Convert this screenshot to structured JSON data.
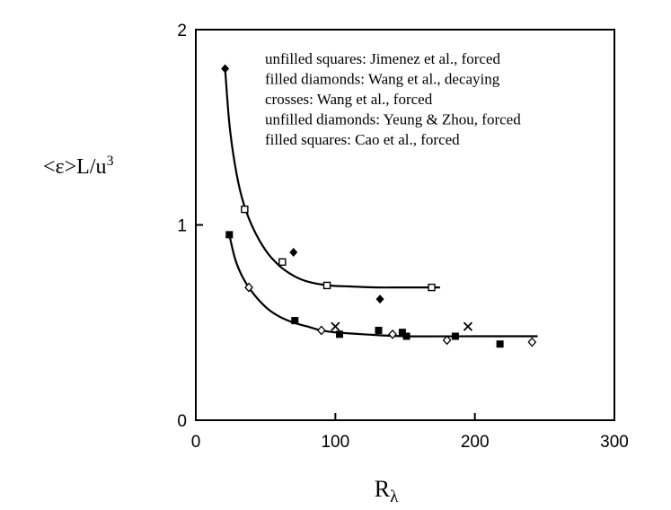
{
  "chart_data": {
    "type": "scatter",
    "xlabel_base": "R",
    "xlabel_sub": "λ",
    "ylabel_base": "<ε>L/u",
    "ylabel_sup": "3",
    "xlim": [
      0,
      300
    ],
    "ylim": [
      0,
      2
    ],
    "x_ticks": [
      0,
      100,
      200,
      300
    ],
    "y_ticks": [
      0,
      1,
      2
    ],
    "grid": false,
    "legend_placement": "top-right inside plot",
    "legend": [
      "unfilled squares: Jimenez et al., forced",
      "filled diamonds: Wang et al., decaying",
      "crosses: Wang et al., forced",
      "unfilled diamonds: Yeung & Zhou, forced",
      "filled squares: Cao et al., forced"
    ],
    "series": [
      {
        "marker": "square-open",
        "points": [
          [
            35,
            1.08
          ],
          [
            62,
            0.81
          ],
          [
            94,
            0.69
          ],
          [
            169,
            0.68
          ]
        ]
      },
      {
        "marker": "diamond-filled",
        "points": [
          [
            21,
            1.8
          ],
          [
            70,
            0.86
          ],
          [
            132,
            0.62
          ]
        ]
      },
      {
        "marker": "cross",
        "points": [
          [
            100,
            0.48
          ],
          [
            195,
            0.48
          ]
        ]
      },
      {
        "marker": "diamond-open",
        "points": [
          [
            38,
            0.68
          ],
          [
            90,
            0.46
          ],
          [
            141,
            0.44
          ],
          [
            180,
            0.41
          ],
          [
            241,
            0.4
          ]
        ]
      },
      {
        "marker": "square-filled",
        "points": [
          [
            24,
            0.95
          ],
          [
            71,
            0.51
          ],
          [
            103,
            0.44
          ],
          [
            131,
            0.46
          ],
          [
            148,
            0.45
          ],
          [
            151,
            0.43
          ],
          [
            186,
            0.43
          ],
          [
            218,
            0.39
          ]
        ]
      }
    ],
    "fit_curves": [
      {
        "x": [
          21,
          24,
          28,
          33,
          40,
          50,
          60,
          70,
          80,
          95,
          110,
          130,
          150,
          175
        ],
        "y": [
          1.8,
          1.52,
          1.31,
          1.14,
          1.0,
          0.87,
          0.79,
          0.74,
          0.71,
          0.69,
          0.685,
          0.68,
          0.68,
          0.68
        ]
      },
      {
        "x": [
          24,
          28,
          33,
          40,
          50,
          60,
          70,
          80,
          90,
          100,
          120,
          150,
          200,
          245
        ],
        "y": [
          0.95,
          0.83,
          0.74,
          0.66,
          0.58,
          0.53,
          0.5,
          0.48,
          0.46,
          0.45,
          0.44,
          0.43,
          0.43,
          0.43
        ]
      }
    ]
  }
}
